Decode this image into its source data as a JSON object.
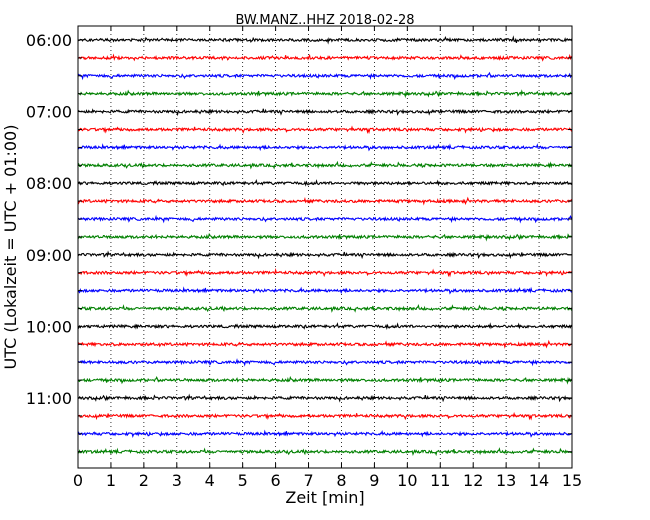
{
  "chart_data": {
    "type": "line",
    "title": "BW.MANZ..HHZ 2018-02-28",
    "xlabel": "Zeit  [min]",
    "ylabel": "UTC (Lokalzeit = UTC + 01:00)",
    "xlim": [
      0,
      15
    ],
    "x_ticks": [
      "0",
      "1",
      "2",
      "3",
      "4",
      "5",
      "6",
      "7",
      "8",
      "9",
      "10",
      "11",
      "12",
      "13",
      "14",
      "15"
    ],
    "y_ticks": [
      "06:00",
      "07:00",
      "08:00",
      "09:00",
      "10:00",
      "11:00"
    ],
    "grid": "vertical dotted at each minute",
    "trace_colors": [
      "#000000",
      "#ff0000",
      "#0000ff",
      "#008000"
    ],
    "traces": [
      {
        "start": "06:00",
        "color": "#000000"
      },
      {
        "start": "06:15",
        "color": "#ff0000"
      },
      {
        "start": "06:30",
        "color": "#0000ff"
      },
      {
        "start": "06:45",
        "color": "#008000"
      },
      {
        "start": "07:00",
        "color": "#000000"
      },
      {
        "start": "07:15",
        "color": "#ff0000"
      },
      {
        "start": "07:30",
        "color": "#0000ff"
      },
      {
        "start": "07:45",
        "color": "#008000"
      },
      {
        "start": "08:00",
        "color": "#000000"
      },
      {
        "start": "08:15",
        "color": "#ff0000"
      },
      {
        "start": "08:30",
        "color": "#0000ff"
      },
      {
        "start": "08:45",
        "color": "#008000"
      },
      {
        "start": "09:00",
        "color": "#000000"
      },
      {
        "start": "09:15",
        "color": "#ff0000"
      },
      {
        "start": "09:30",
        "color": "#0000ff"
      },
      {
        "start": "09:45",
        "color": "#008000"
      },
      {
        "start": "10:00",
        "color": "#000000"
      },
      {
        "start": "10:15",
        "color": "#ff0000"
      },
      {
        "start": "10:30",
        "color": "#0000ff"
      },
      {
        "start": "10:45",
        "color": "#008000"
      },
      {
        "start": "11:00",
        "color": "#000000"
      },
      {
        "start": "11:15",
        "color": "#ff0000"
      },
      {
        "start": "11:30",
        "color": "#0000ff"
      },
      {
        "start": "11:45",
        "color": "#008000"
      }
    ]
  }
}
